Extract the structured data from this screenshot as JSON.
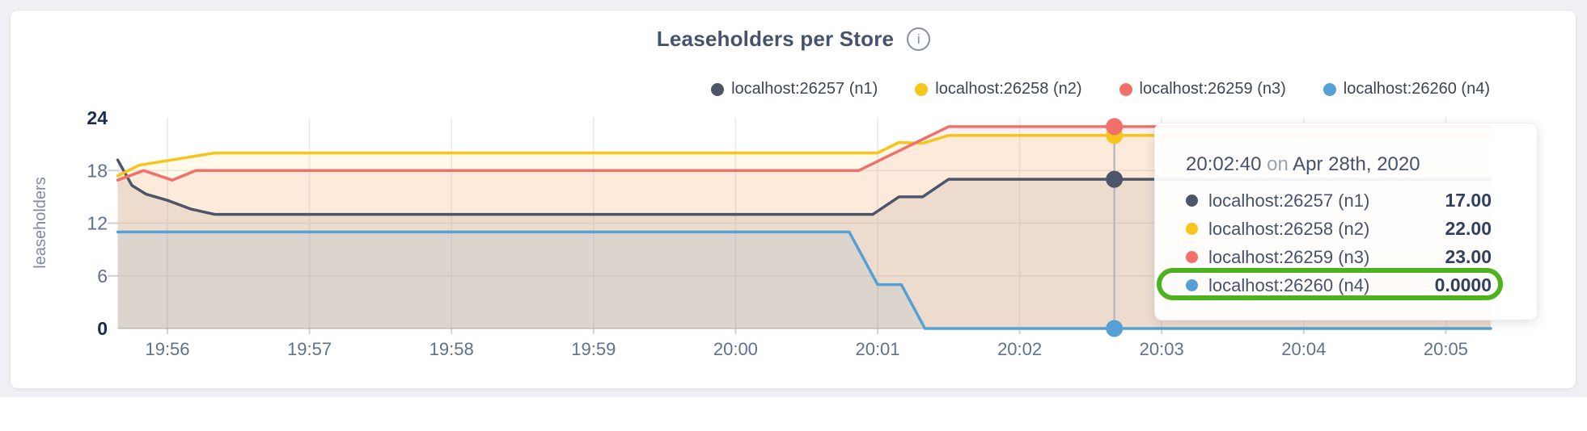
{
  "header": {
    "title": "Leaseholders per Store",
    "info_icon_glyph": "i"
  },
  "legend": {
    "items": [
      {
        "label": "localhost:26257 (n1)",
        "color": "#4c5668"
      },
      {
        "label": "localhost:26258 (n2)",
        "color": "#f6c51b"
      },
      {
        "label": "localhost:26259 (n3)",
        "color": "#f2706a"
      },
      {
        "label": "localhost:26260 (n4)",
        "color": "#56a0d5"
      }
    ]
  },
  "tooltip": {
    "time": "20:02:40",
    "connector": "on",
    "date": "Apr 28th, 2020",
    "rows": [
      {
        "label": "localhost:26257 (n1)",
        "value": "17.00",
        "color": "#4c5668",
        "highlighted": false
      },
      {
        "label": "localhost:26258 (n2)",
        "value": "22.00",
        "color": "#f6c51b",
        "highlighted": false
      },
      {
        "label": "localhost:26259 (n3)",
        "value": "23.00",
        "color": "#f2706a",
        "highlighted": false
      },
      {
        "label": "localhost:26260 (n4)",
        "value": "0.0000",
        "color": "#56a0d5",
        "highlighted": true
      }
    ],
    "annotation_color": "#4db31c"
  },
  "chart_data": {
    "type": "area",
    "title": "Leaseholders per Store",
    "xlabel": "",
    "ylabel": "leaseholders",
    "ylim": [
      0,
      24
    ],
    "yticks": [
      24,
      18,
      12,
      6,
      0
    ],
    "ytick_bold": [
      24,
      0
    ],
    "xticks": [
      "19:56",
      "19:57",
      "19:58",
      "19:59",
      "20:00",
      "20:01",
      "20:02",
      "20:03",
      "20:04",
      "20:05"
    ],
    "x_range": [
      "19:55:39",
      "20:05:19"
    ],
    "grid": true,
    "legend_position": "top-right",
    "hover": {
      "time": "20:02:40",
      "line_color": "#b6bac2"
    },
    "series": [
      {
        "name": "localhost:26257 (n1)",
        "color": "#4c5668",
        "fill_opacity": 0.1,
        "hover_value": 17,
        "points": [
          [
            "19:55:39",
            19.2
          ],
          [
            "19:55:45",
            16.3
          ],
          [
            "19:55:51",
            15.3
          ],
          [
            "19:56:00",
            14.6
          ],
          [
            "19:56:10",
            13.6
          ],
          [
            "19:56:20",
            13
          ],
          [
            "20:00:58",
            13
          ],
          [
            "20:01:09",
            15
          ],
          [
            "20:01:19",
            15
          ],
          [
            "20:01:30",
            17
          ],
          [
            "20:05:19",
            17
          ]
        ]
      },
      {
        "name": "localhost:26258 (n2)",
        "color": "#f6c51b",
        "fill_opacity": 0.1,
        "hover_value": 22,
        "points": [
          [
            "19:55:39",
            17.4
          ],
          [
            "19:55:48",
            18.6
          ],
          [
            "19:56:20",
            20
          ],
          [
            "20:01:00",
            20
          ],
          [
            "20:01:09",
            21.2
          ],
          [
            "20:01:19",
            21.1
          ],
          [
            "20:01:30",
            22
          ],
          [
            "20:05:19",
            22
          ]
        ]
      },
      {
        "name": "localhost:26259 (n3)",
        "color": "#f2706a",
        "fill_opacity": 0.1,
        "hover_value": 23,
        "points": [
          [
            "19:55:39",
            16.9
          ],
          [
            "19:55:50",
            18
          ],
          [
            "19:56:02",
            16.9
          ],
          [
            "19:56:12",
            18
          ],
          [
            "20:00:52",
            18
          ],
          [
            "20:01:30",
            23
          ],
          [
            "20:05:19",
            23
          ]
        ]
      },
      {
        "name": "localhost:26260 (n4)",
        "color": "#56a0d5",
        "fill_opacity": 0.11,
        "hover_value": 0,
        "points": [
          [
            "19:55:39",
            11
          ],
          [
            "20:00:48",
            11
          ],
          [
            "20:01:00",
            5
          ],
          [
            "20:01:10",
            5
          ],
          [
            "20:01:20",
            0
          ],
          [
            "20:05:19",
            0
          ]
        ]
      }
    ],
    "axis_colors": {
      "tick_text": "#5f7190",
      "tick_text_bold": "#1a2b50",
      "grid": "#e8e9ec",
      "axis_label": "#7e8aa4"
    }
  }
}
